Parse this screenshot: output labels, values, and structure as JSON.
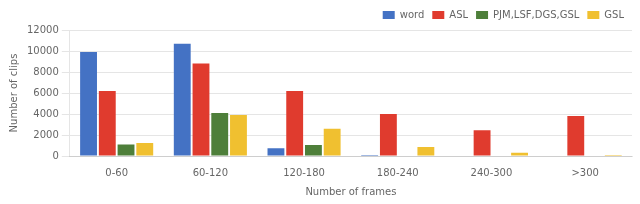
{
  "chart_data": {
    "type": "bar",
    "categories": [
      "0-60",
      "60-120",
      "120-180",
      "180-240",
      "240-300",
      ">300"
    ],
    "series": [
      {
        "name": "word",
        "color": "#4472c4",
        "values": [
          9900,
          10700,
          750,
          100,
          0,
          0
        ]
      },
      {
        "name": "ASL",
        "color": "#e03b2e",
        "values": [
          6200,
          8800,
          6200,
          4000,
          2450,
          3800
        ]
      },
      {
        "name": "PJM,LSF,DGS,GSL",
        "color": "#4e7f3a",
        "values": [
          1100,
          4100,
          1050,
          0,
          0,
          0
        ]
      },
      {
        "name": "GSL",
        "color": "#f0c030",
        "values": [
          1250,
          3900,
          2600,
          850,
          300,
          100
        ]
      }
    ],
    "xlabel": "Number of frames",
    "ylabel": "Number of clips",
    "ylim": [
      0,
      12000
    ],
    "yticks": [
      0,
      2000,
      4000,
      6000,
      8000,
      10000,
      12000
    ],
    "grid": true,
    "legend": "upper right"
  }
}
